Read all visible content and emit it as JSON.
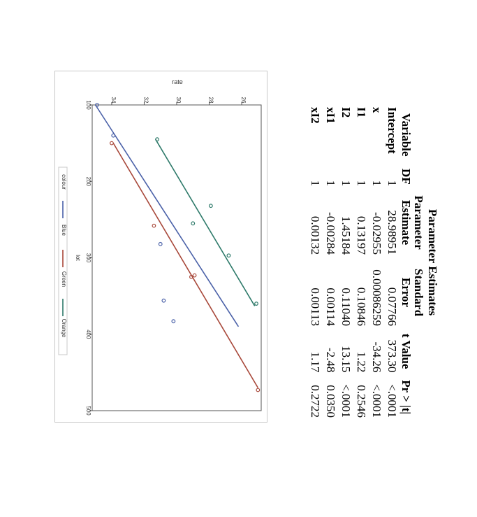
{
  "table": {
    "title": "Parameter Estimates",
    "headers": {
      "variable": "Variable",
      "df": "DF",
      "estimate_line1": "Parameter",
      "estimate_line2": "Estimate",
      "stderr_line1": "Standard",
      "stderr_line2": "Error",
      "tvalue": "t Value",
      "pr": "Pr > |t|"
    },
    "rows": [
      {
        "variable": "Intercept",
        "df": "1",
        "estimate": "28.98951",
        "stderr": "0.07766",
        "tvalue": "373.30",
        "pr": "<.0001"
      },
      {
        "variable": "x",
        "df": "1",
        "estimate": "-0.02955",
        "stderr": "0.00086259",
        "tvalue": "-34.26",
        "pr": "<.0001"
      },
      {
        "variable": "I1",
        "df": "1",
        "estimate": "0.13197",
        "stderr": "0.10846",
        "tvalue": "1.22",
        "pr": "0.2546"
      },
      {
        "variable": "I2",
        "df": "1",
        "estimate": "1.45184",
        "stderr": "0.11040",
        "tvalue": "13.15",
        "pr": "<.0001"
      },
      {
        "variable": "xI1",
        "df": "1",
        "estimate": "-0.00284",
        "stderr": "0.00114",
        "tvalue": "-2.48",
        "pr": "0.0350"
      },
      {
        "variable": "xI2",
        "df": "1",
        "estimate": "0.00132",
        "stderr": "0.00113",
        "tvalue": "1.17",
        "pr": "0.2722"
      }
    ]
  },
  "chart_data": {
    "type": "scatter",
    "orientation": "rotated-90-clockwise",
    "xlabel": "lot",
    "ylabel": "rate",
    "xlim": [
      100,
      500
    ],
    "ylim": [
      24.8,
      35.2
    ],
    "x_ticks": [
      100,
      200,
      300,
      400,
      500
    ],
    "y_ticks": [
      26,
      28,
      30,
      32,
      34
    ],
    "grid": false,
    "legend_title": "colour",
    "legend_position": "bottom",
    "series": [
      {
        "name": "Blue",
        "color": "#4a61a8",
        "points": [
          [
            100,
            34.9
          ],
          [
            140,
            33.9
          ],
          [
            282,
            31.0
          ],
          [
            383,
            30.2
          ],
          [
            356,
            30.8
          ]
        ],
        "fit": [
          [
            100,
            35.0
          ],
          [
            390,
            26.2
          ]
        ]
      },
      {
        "name": "Green",
        "color": "#a8483a",
        "points": [
          [
            150,
            34.0
          ],
          [
            258,
            31.4
          ],
          [
            323,
            28.9
          ],
          [
            325,
            29.1
          ],
          [
            473,
            25.0
          ]
        ],
        "fit": [
          [
            150,
            33.9
          ],
          [
            470,
            25.0
          ]
        ]
      },
      {
        "name": "Orange",
        "color": "#2e7a6a",
        "points": [
          [
            145,
            31.2
          ],
          [
            232,
            27.9
          ],
          [
            255,
            29.0
          ],
          [
            297,
            26.8
          ],
          [
            360,
            25.1
          ]
        ],
        "fit": [
          [
            145,
            31.3
          ],
          [
            363,
            25.2
          ]
        ]
      }
    ]
  }
}
